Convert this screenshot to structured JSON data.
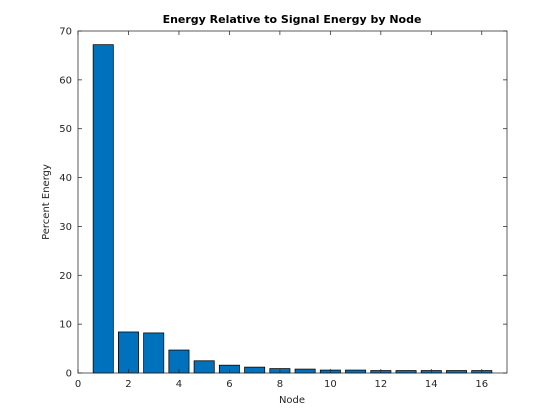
{
  "chart_data": {
    "type": "bar",
    "title": "Energy Relative to Signal Energy by Node",
    "xlabel": "Node",
    "ylabel": "Percent Energy",
    "x": [
      1,
      2,
      3,
      4,
      5,
      6,
      7,
      8,
      9,
      10,
      11,
      12,
      13,
      14,
      15,
      16
    ],
    "values": [
      67.2,
      8.4,
      8.2,
      4.7,
      2.5,
      1.6,
      1.2,
      0.9,
      0.8,
      0.6,
      0.6,
      0.5,
      0.5,
      0.5,
      0.5,
      0.5
    ],
    "xlim": [
      0,
      17
    ],
    "ylim": [
      0,
      70
    ],
    "xticks": [
      0,
      2,
      4,
      6,
      8,
      10,
      12,
      14,
      16
    ],
    "yticks": [
      0,
      10,
      20,
      30,
      40,
      50,
      60,
      70
    ],
    "bar_color": "#0072BD",
    "edge_color": "#000000",
    "grid": false
  }
}
